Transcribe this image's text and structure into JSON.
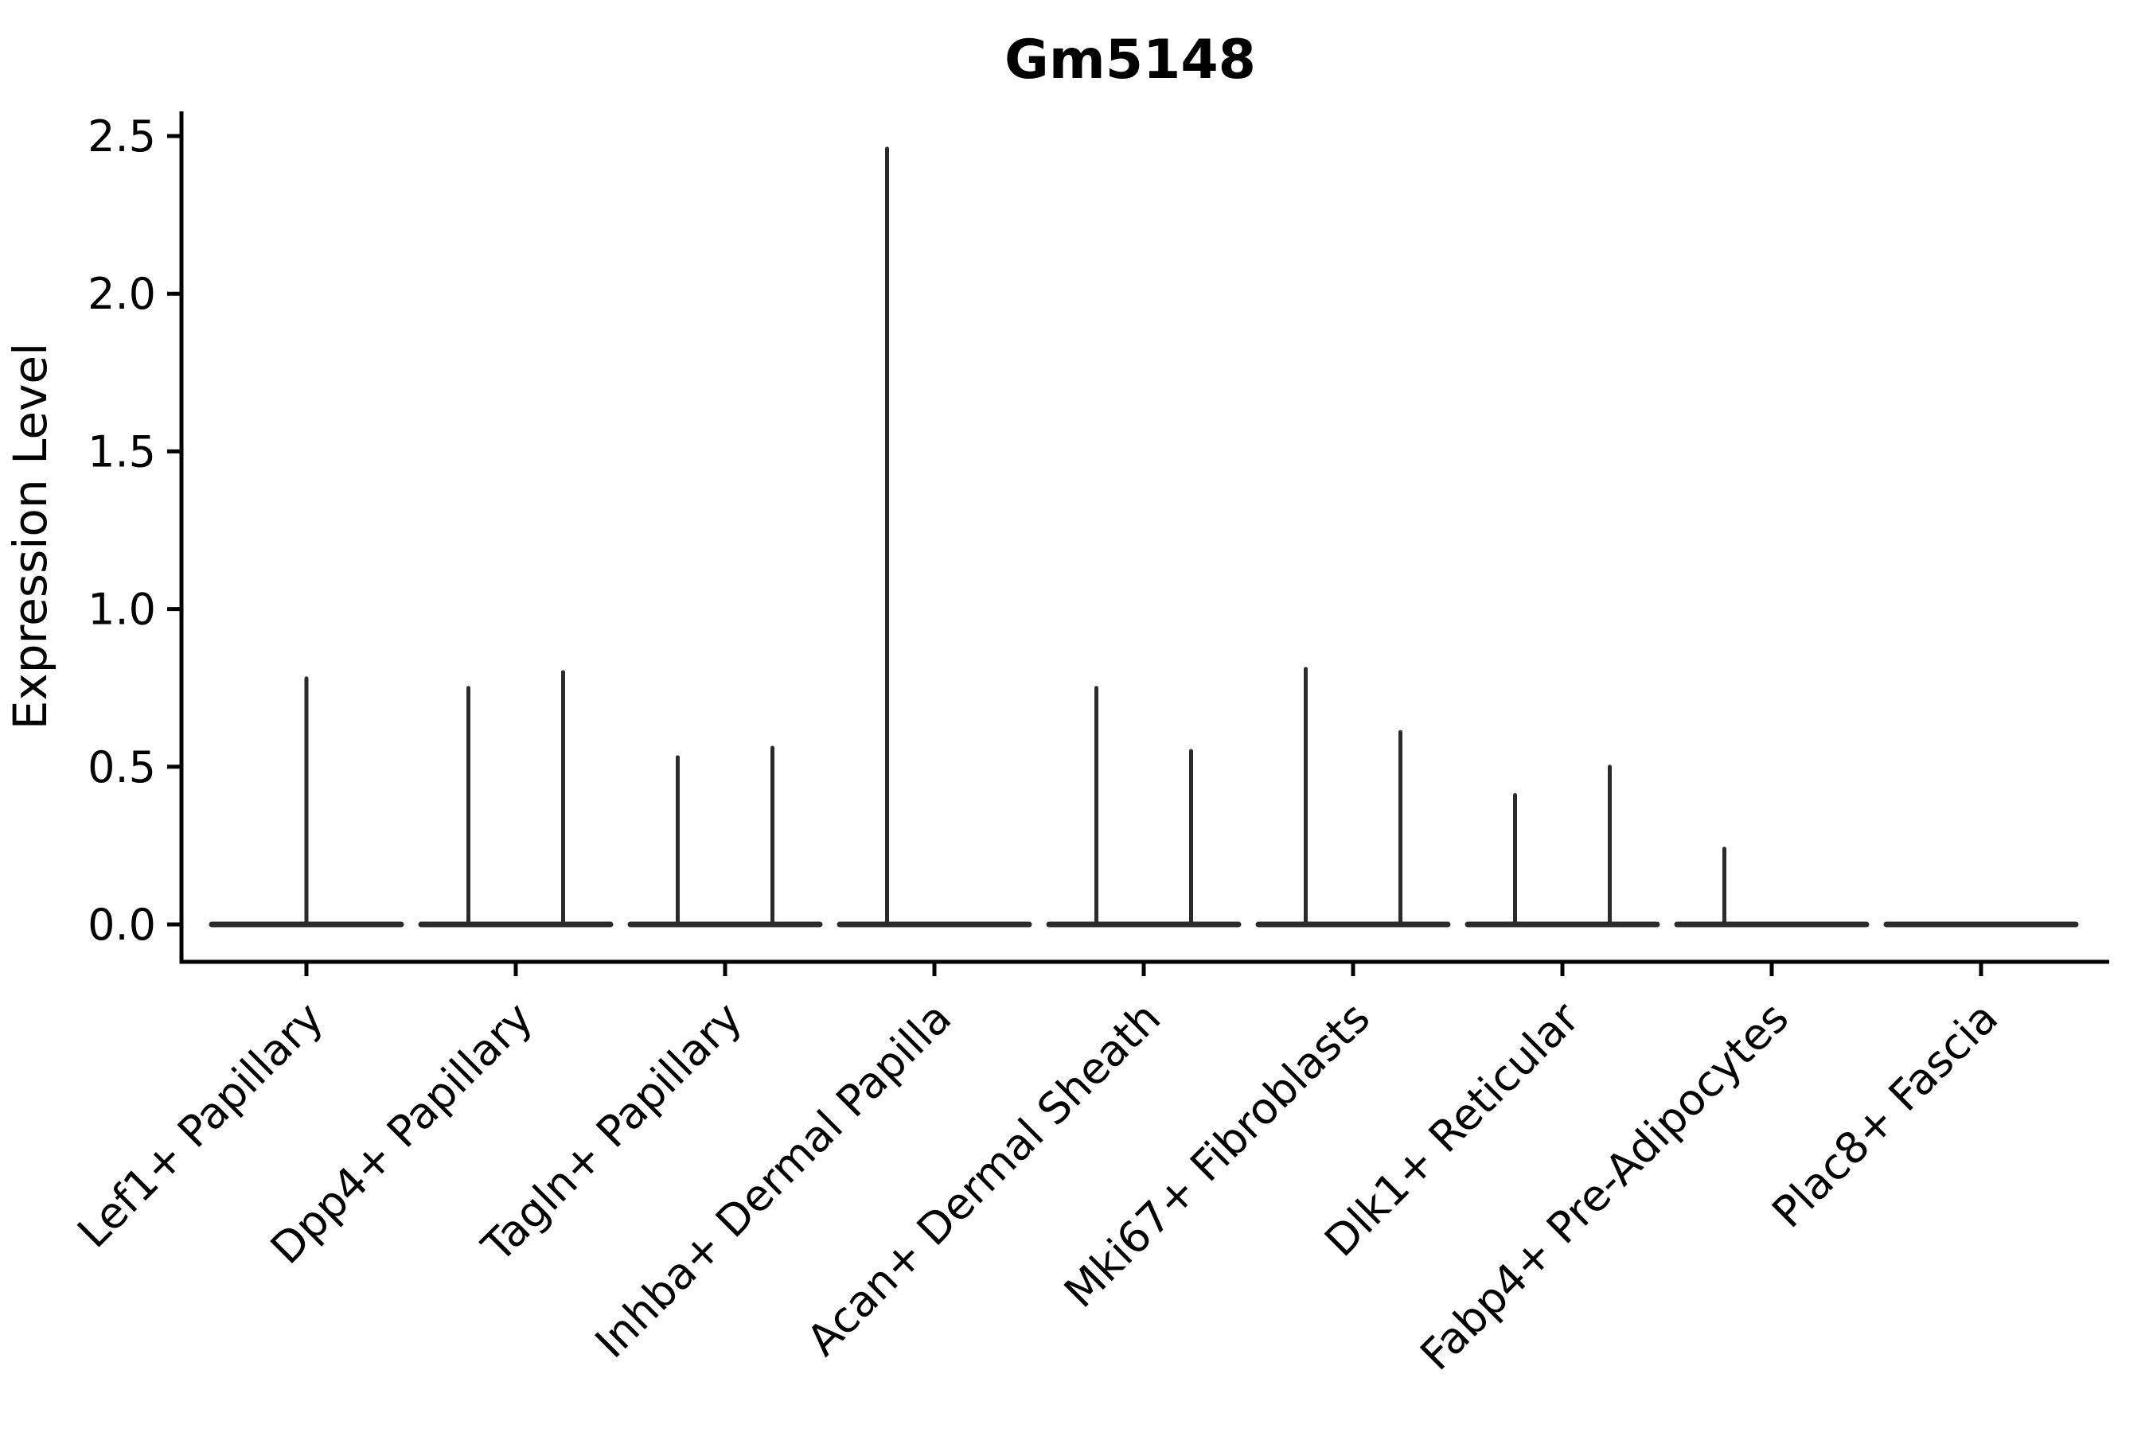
{
  "figure": {
    "background_color": "#ffffff",
    "axis_color": "#000000",
    "violin_line_color": "#2b2b2b"
  },
  "chart_data": {
    "type": "violin",
    "title": "Gm5148",
    "xlabel": "",
    "ylabel": "Expression Level",
    "y_ticks": [
      "0.0",
      "0.5",
      "1.0",
      "1.5",
      "2.0",
      "2.5"
    ],
    "ylim": [
      -0.12,
      2.58
    ],
    "grid": false,
    "legend": null,
    "categories": [
      "Lef1+ Papillary",
      "Dpp4+ Papillary",
      "Tagln+ Papillary",
      "Inhba+ Dermal Papilla",
      "Acan+ Dermal Sheath",
      "Mki67+ Fibroblasts",
      "Dlk1+ Reticular",
      "Fabp4+ Pre-Adipocytes",
      "Plac8+ Fascia"
    ],
    "violins": [
      {
        "category": "Lef1+ Papillary",
        "distributions": [
          {
            "position": "center",
            "bulk_value": 0.0,
            "max_value": 0.78
          }
        ]
      },
      {
        "category": "Dpp4+ Papillary",
        "distributions": [
          {
            "position": "left",
            "bulk_value": 0.0,
            "max_value": 0.75
          },
          {
            "position": "right",
            "bulk_value": 0.0,
            "max_value": 0.8
          }
        ]
      },
      {
        "category": "Tagln+ Papillary",
        "distributions": [
          {
            "position": "left",
            "bulk_value": 0.0,
            "max_value": 0.53
          },
          {
            "position": "right",
            "bulk_value": 0.0,
            "max_value": 0.56
          }
        ]
      },
      {
        "category": "Inhba+ Dermal Papilla",
        "distributions": [
          {
            "position": "left",
            "bulk_value": 0.0,
            "max_value": 2.46
          },
          {
            "position": "right",
            "bulk_value": 0.0,
            "max_value": 0.0
          }
        ]
      },
      {
        "category": "Acan+ Dermal Sheath",
        "distributions": [
          {
            "position": "left",
            "bulk_value": 0.0,
            "max_value": 0.75
          },
          {
            "position": "right",
            "bulk_value": 0.0,
            "max_value": 0.55
          }
        ]
      },
      {
        "category": "Mki67+ Fibroblasts",
        "distributions": [
          {
            "position": "left",
            "bulk_value": 0.0,
            "max_value": 0.81
          },
          {
            "position": "right",
            "bulk_value": 0.0,
            "max_value": 0.61
          }
        ]
      },
      {
        "category": "Dlk1+ Reticular",
        "distributions": [
          {
            "position": "left",
            "bulk_value": 0.0,
            "max_value": 0.41
          },
          {
            "position": "right",
            "bulk_value": 0.0,
            "max_value": 0.5
          }
        ]
      },
      {
        "category": "Fabp4+ Pre-Adipocytes",
        "distributions": [
          {
            "position": "left",
            "bulk_value": 0.0,
            "max_value": 0.24
          },
          {
            "position": "right",
            "bulk_value": 0.0,
            "max_value": 0.0
          }
        ]
      },
      {
        "category": "Plac8+ Fascia",
        "distributions": [
          {
            "position": "center",
            "bulk_value": 0.0,
            "max_value": 0.0
          }
        ]
      }
    ]
  }
}
